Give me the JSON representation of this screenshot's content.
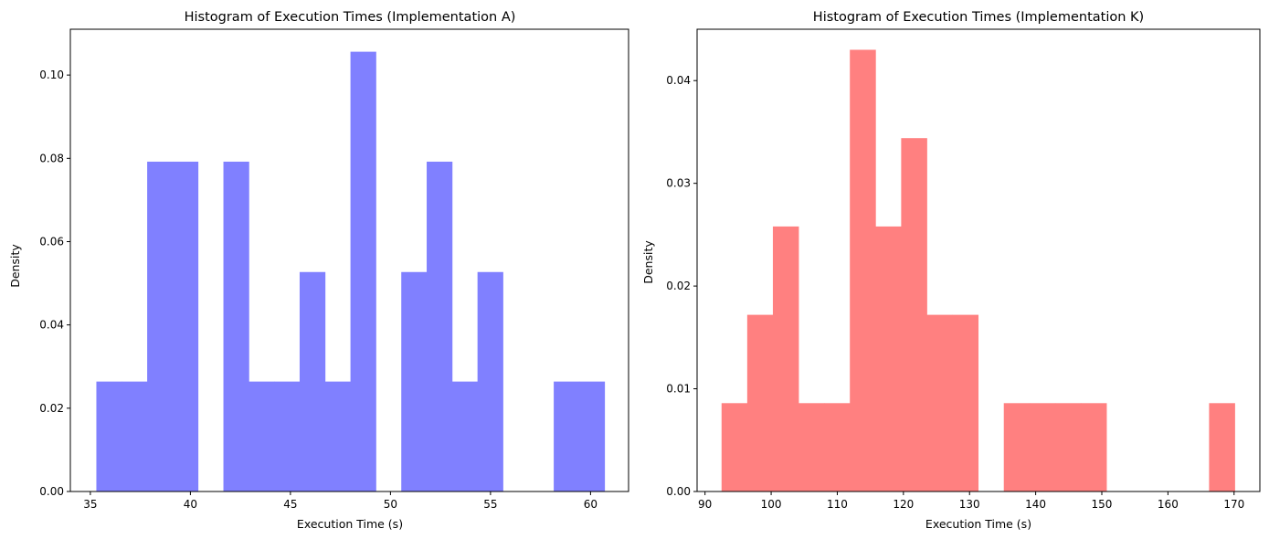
{
  "chart_data": [
    {
      "type": "bar",
      "subtype": "histogram",
      "title": "Histogram of Execution Times (Implementation A)",
      "xlabel": "Execution Time (s)",
      "ylabel": "Density",
      "color": "#8080ff",
      "xlim": [
        34.0,
        61.9
      ],
      "ylim": [
        0,
        0.111
      ],
      "xticks": [
        35,
        40,
        45,
        50,
        55,
        60
      ],
      "yticks": [
        0.0,
        0.02,
        0.04,
        0.06,
        0.08,
        0.1
      ],
      "ytick_decimals": 2,
      "grid": false,
      "bin_edges": [
        35.3,
        36.57,
        37.84,
        39.11,
        40.38,
        41.65,
        42.92,
        44.19,
        45.46,
        46.73,
        48.0,
        49.27,
        50.54,
        51.81,
        53.08,
        54.35,
        55.62,
        56.89,
        58.16,
        59.43,
        60.7
      ],
      "values": [
        0.0264,
        0.0264,
        0.0792,
        0.0792,
        0.0,
        0.0792,
        0.0264,
        0.0264,
        0.0527,
        0.0264,
        0.1056,
        0.0,
        0.0527,
        0.0792,
        0.0264,
        0.0527,
        0.0,
        0.0,
        0.0264,
        0.0264
      ]
    },
    {
      "type": "bar",
      "subtype": "histogram",
      "title": "Histogram of Execution Times (Implementation K)",
      "xlabel": "Execution Time (s)",
      "ylabel": "Density",
      "color": "#ff8080",
      "xlim": [
        88.8,
        173.9
      ],
      "ylim": [
        0,
        0.045
      ],
      "xticks": [
        90,
        100,
        110,
        120,
        130,
        140,
        150,
        160,
        170
      ],
      "yticks": [
        0.0,
        0.01,
        0.02,
        0.03,
        0.04
      ],
      "ytick_decimals": 2,
      "grid": false,
      "bin_edges": [
        92.5,
        96.38,
        100.26,
        104.14,
        108.02,
        111.9,
        115.78,
        119.66,
        123.54,
        127.42,
        131.3,
        135.18,
        139.06,
        142.94,
        146.82,
        150.7,
        154.58,
        158.46,
        162.34,
        166.22,
        170.1
      ],
      "values": [
        0.0086,
        0.0172,
        0.0258,
        0.0086,
        0.0086,
        0.043,
        0.0258,
        0.0344,
        0.0172,
        0.0172,
        0.0,
        0.0086,
        0.0086,
        0.0086,
        0.0086,
        0.0,
        0.0,
        0.0,
        0.0,
        0.0086
      ]
    }
  ]
}
